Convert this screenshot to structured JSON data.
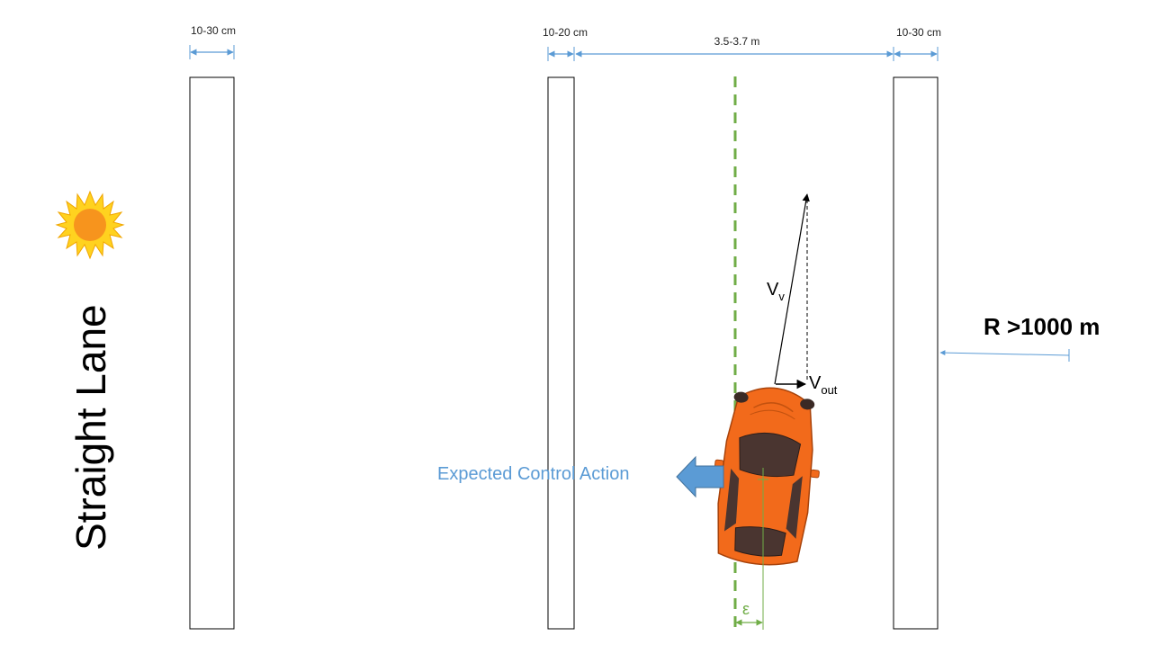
{
  "title": "Straight Lane",
  "dimensions": {
    "left_line_width": "10-30 cm",
    "center_line_width": "10-20 cm",
    "lane_width": "3.5-3.7 m",
    "right_line_width": "10-30 cm"
  },
  "radius_label": "R >1000 m",
  "vectors": {
    "vehicle_velocity": "V",
    "vehicle_velocity_sub": "v",
    "lateral_velocity": "V",
    "lateral_velocity_sub": "out"
  },
  "control_action_label": "Expected Control Action",
  "offset_symbol": "ε",
  "icons": {
    "sun": "sun-icon",
    "car": "car-icon",
    "arrow": "left-arrow-icon"
  },
  "colors": {
    "dimension_blue": "#5b9bd5",
    "centerline_green": "#70ad47",
    "car_orange": "#f26a1b",
    "sun_yellow": "#ffd21f",
    "sun_core": "#f7941d"
  }
}
